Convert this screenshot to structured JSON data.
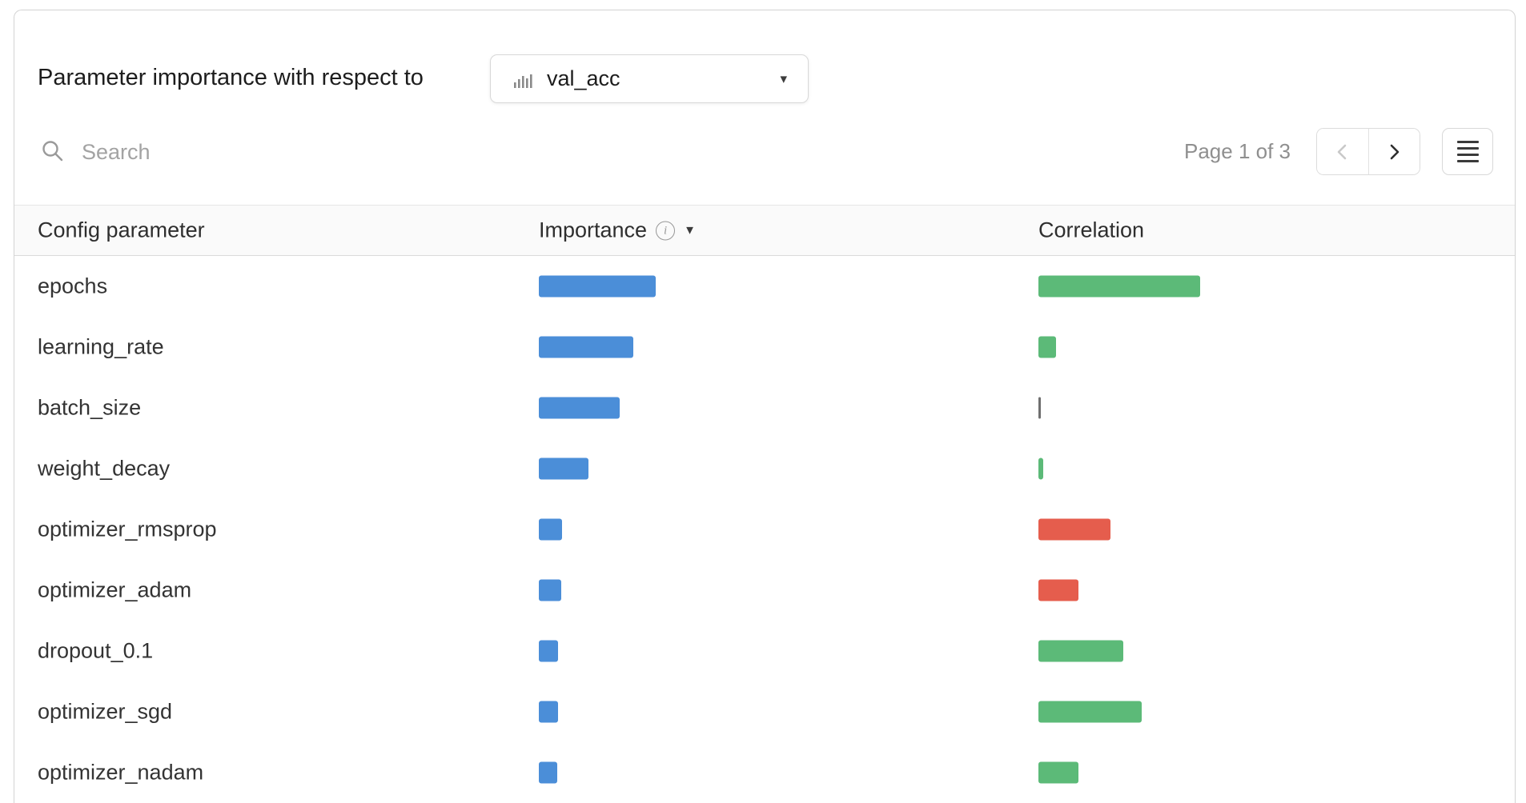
{
  "panel": {
    "title": "Parameter importance with respect to"
  },
  "metric_dropdown": {
    "value": "val_acc"
  },
  "search": {
    "placeholder": "Search"
  },
  "pagination": {
    "label": "Page 1 of 3"
  },
  "icons": {
    "dropdown_caret": "▾",
    "sort_caret": "▼",
    "info": "i"
  },
  "colors": {
    "importance": "#4b8ed8",
    "correlation_positive": "#5cba78",
    "correlation_negative": "#e55d4d",
    "correlation_neutral": "#6f6f6f"
  },
  "table": {
    "columns": [
      "Config parameter",
      "Importance",
      "Correlation"
    ],
    "rows": [
      {
        "name": "epochs",
        "importance": 0.26,
        "correlation": 0.36,
        "correlation_sign": "positive"
      },
      {
        "name": "learning_rate",
        "importance": 0.21,
        "correlation": 0.04,
        "correlation_sign": "positive"
      },
      {
        "name": "batch_size",
        "importance": 0.18,
        "correlation": 0.0,
        "correlation_sign": "neutral"
      },
      {
        "name": "weight_decay",
        "importance": 0.11,
        "correlation": 0.01,
        "correlation_sign": "positive"
      },
      {
        "name": "optimizer_rmsprop",
        "importance": 0.052,
        "correlation": -0.16,
        "correlation_sign": "negative"
      },
      {
        "name": "optimizer_adam",
        "importance": 0.05,
        "correlation": -0.09,
        "correlation_sign": "negative"
      },
      {
        "name": "dropout_0.1",
        "importance": 0.043,
        "correlation": 0.19,
        "correlation_sign": "positive"
      },
      {
        "name": "optimizer_sgd",
        "importance": 0.043,
        "correlation": 0.23,
        "correlation_sign": "positive"
      },
      {
        "name": "optimizer_nadam",
        "importance": 0.041,
        "correlation": 0.09,
        "correlation_sign": "positive"
      }
    ]
  },
  "chart_data": {
    "type": "bar",
    "title": "Parameter importance with respect to val_acc",
    "orientation": "horizontal",
    "categories": [
      "epochs",
      "learning_rate",
      "batch_size",
      "weight_decay",
      "optimizer_rmsprop",
      "optimizer_adam",
      "dropout_0.1",
      "optimizer_sgd",
      "optimizer_nadam"
    ],
    "series": [
      {
        "name": "Importance",
        "values": [
          0.26,
          0.21,
          0.18,
          0.11,
          0.052,
          0.05,
          0.043,
          0.043,
          0.041
        ]
      },
      {
        "name": "Correlation",
        "values": [
          0.36,
          0.04,
          0.0,
          0.01,
          -0.16,
          -0.09,
          0.19,
          0.23,
          0.09
        ]
      }
    ],
    "xlim_importance": [
      0,
      1
    ],
    "xlim_correlation": [
      -1,
      1
    ],
    "grid": false,
    "legend_position": "none"
  }
}
